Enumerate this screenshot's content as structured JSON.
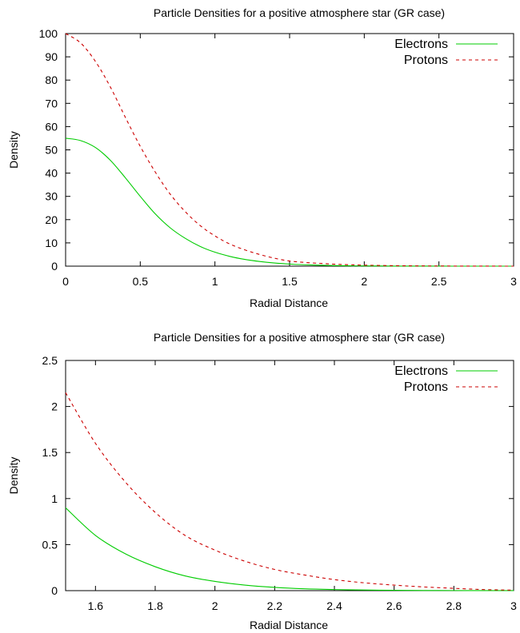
{
  "chart_data": [
    {
      "type": "line",
      "title": "Particle Densities for a positive atmosphere star (GR case)",
      "xlabel": "Radial Distance",
      "ylabel": "Density",
      "xlim": [
        0,
        3
      ],
      "ylim": [
        0,
        100
      ],
      "xticks": [
        0,
        0.5,
        1,
        1.5,
        2,
        2.5,
        3
      ],
      "xtick_labels": [
        "0",
        "0.5",
        "1",
        "1.5",
        "2",
        "2.5",
        "3"
      ],
      "yticks": [
        0,
        10,
        20,
        30,
        40,
        50,
        60,
        70,
        80,
        90,
        100
      ],
      "ytick_labels": [
        "0",
        "10",
        "20",
        "30",
        "40",
        "50",
        "60",
        "70",
        "80",
        "90",
        "100"
      ],
      "grid": false,
      "legend_position": "top-right",
      "series": [
        {
          "name": "Electrons",
          "color": "#00cc00",
          "dash": "solid",
          "x": [
            0,
            0.1,
            0.2,
            0.3,
            0.4,
            0.5,
            0.6,
            0.7,
            0.8,
            0.9,
            1.0,
            1.1,
            1.2,
            1.3,
            1.4,
            1.5,
            1.6,
            1.7,
            1.8,
            1.9,
            2.0,
            2.2,
            2.4,
            2.6,
            2.8,
            3.0
          ],
          "y": [
            55,
            54,
            51,
            45.5,
            38,
            30,
            22.5,
            16.5,
            12,
            8.5,
            6,
            4.2,
            2.9,
            2.0,
            1.35,
            0.9,
            0.6,
            0.4,
            0.25,
            0.15,
            0.1,
            0.03,
            0.01,
            0.004,
            0.001,
            0
          ]
        },
        {
          "name": "Protons",
          "color": "#cc0000",
          "dash": "dashed",
          "x": [
            0,
            0.1,
            0.2,
            0.3,
            0.4,
            0.5,
            0.6,
            0.7,
            0.8,
            0.9,
            1.0,
            1.1,
            1.2,
            1.3,
            1.4,
            1.5,
            1.6,
            1.7,
            1.8,
            1.9,
            2.0,
            2.2,
            2.4,
            2.6,
            2.8,
            3.0
          ],
          "y": [
            100,
            96,
            88,
            77,
            64,
            51.5,
            40.5,
            31,
            23.5,
            17.5,
            13,
            9.5,
            7,
            5,
            3.4,
            2.2,
            1.6,
            1.2,
            0.85,
            0.6,
            0.42,
            0.2,
            0.1,
            0.04,
            0.015,
            0
          ]
        }
      ]
    },
    {
      "type": "line",
      "title": "Particle Densities for a positive atmosphere star (GR case)",
      "xlabel": "Radial Distance",
      "ylabel": "Density",
      "xlim": [
        1.5,
        3
      ],
      "ylim": [
        0,
        2.5
      ],
      "xticks": [
        1.6,
        1.8,
        2,
        2.2,
        2.4,
        2.6,
        2.8,
        3
      ],
      "xtick_labels": [
        "1.6",
        "1.8",
        "2",
        "2.2",
        "2.4",
        "2.6",
        "2.8",
        "3"
      ],
      "yticks": [
        0,
        0.5,
        1,
        1.5,
        2,
        2.5
      ],
      "ytick_labels": [
        "0",
        "0.5",
        "1",
        "1.5",
        "2",
        "2.5"
      ],
      "grid": false,
      "legend_position": "top-right",
      "series": [
        {
          "name": "Electrons",
          "color": "#00cc00",
          "dash": "solid",
          "x": [
            1.5,
            1.6,
            1.7,
            1.8,
            1.9,
            2.0,
            2.1,
            2.2,
            2.3,
            2.4,
            2.5,
            2.6,
            2.7,
            2.8,
            2.9,
            3.0
          ],
          "y": [
            0.9,
            0.6,
            0.4,
            0.26,
            0.16,
            0.1,
            0.06,
            0.035,
            0.02,
            0.012,
            0.007,
            0.004,
            0.002,
            0.001,
            0.0005,
            0.0002
          ]
        },
        {
          "name": "Protons",
          "color": "#cc0000",
          "dash": "dashed",
          "x": [
            1.5,
            1.6,
            1.7,
            1.8,
            1.9,
            2.0,
            2.1,
            2.2,
            2.3,
            2.4,
            2.5,
            2.6,
            2.7,
            2.8,
            2.9,
            3.0
          ],
          "y": [
            2.15,
            1.6,
            1.18,
            0.85,
            0.6,
            0.44,
            0.32,
            0.23,
            0.17,
            0.12,
            0.085,
            0.06,
            0.04,
            0.025,
            0.012,
            0.005
          ]
        }
      ]
    }
  ]
}
